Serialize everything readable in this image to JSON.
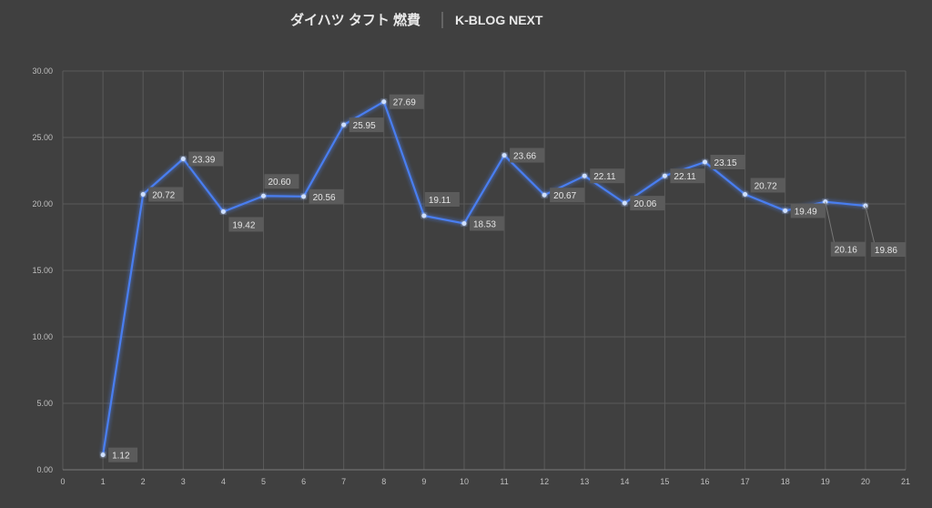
{
  "chart_data": {
    "type": "line",
    "title": "ダイハツ タフト 燃費",
    "subtitle": "K-BLOG NEXT",
    "xlabel": "",
    "ylabel": "",
    "xlim": [
      0,
      21
    ],
    "ylim": [
      0,
      30
    ],
    "x_ticks": [
      "0",
      "1",
      "2",
      "3",
      "4",
      "5",
      "6",
      "7",
      "8",
      "9",
      "10",
      "11",
      "12",
      "13",
      "14",
      "15",
      "16",
      "17",
      "18",
      "19",
      "20",
      "21"
    ],
    "y_ticks": [
      "0.00",
      "5.00",
      "10.00",
      "15.00",
      "20.00",
      "25.00",
      "30.00"
    ],
    "grid": true,
    "legend": "none",
    "series": [
      {
        "name": "燃費",
        "color": "#4a7ef0",
        "x": [
          1,
          2,
          3,
          4,
          5,
          6,
          7,
          8,
          9,
          10,
          11,
          12,
          13,
          14,
          15,
          16,
          17,
          18,
          19,
          20
        ],
        "values": [
          1.12,
          20.72,
          23.39,
          19.42,
          20.6,
          20.56,
          25.95,
          27.69,
          19.11,
          18.53,
          23.66,
          20.67,
          22.11,
          20.06,
          22.11,
          23.15,
          20.72,
          19.49,
          20.16,
          19.86
        ],
        "labels": [
          "1.12",
          "20.72",
          "23.39",
          "19.42",
          "20.60",
          "20.56",
          "25.95",
          "27.69",
          "19.11",
          "18.53",
          "23.66",
          "20.67",
          "22.11",
          "20.06",
          "22.11",
          "23.15",
          "20.72",
          "19.49",
          "20.16",
          "19.86"
        ]
      }
    ]
  }
}
